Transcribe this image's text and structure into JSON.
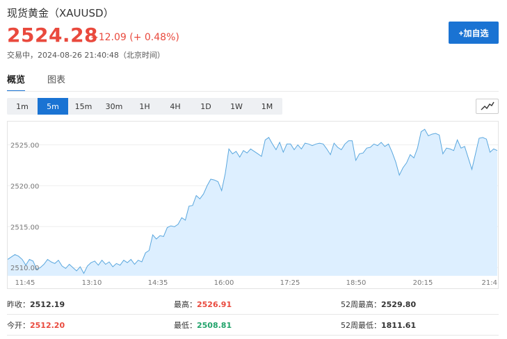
{
  "header": {
    "title": "现货黄金（XAUUSD）",
    "price": "2524.28",
    "change": "+12.09 (+ 0.48%)",
    "status": "交易中，2024-08-26 21:40:48（北京时间）",
    "add_button": "+加自选"
  },
  "tabs": [
    {
      "label": "概览",
      "active": true
    },
    {
      "label": "图表",
      "active": false
    }
  ],
  "intervals": [
    {
      "label": "1m",
      "active": false
    },
    {
      "label": "5m",
      "active": true
    },
    {
      "label": "15m",
      "active": false
    },
    {
      "label": "30m",
      "active": false
    },
    {
      "label": "1H",
      "active": false
    },
    {
      "label": "4H",
      "active": false
    },
    {
      "label": "1D",
      "active": false
    },
    {
      "label": "1W",
      "active": false
    },
    {
      "label": "1M",
      "active": false
    }
  ],
  "chart_type_icon": "line-chart-icon",
  "colors": {
    "up": "#e9493d",
    "down": "#21a36b",
    "accent": "#1a73d3",
    "line": "#5aa7de",
    "fill": "#ddefff"
  },
  "chart_data": {
    "type": "area",
    "title": "",
    "xlabel": "",
    "ylabel": "",
    "ylim": [
      2509.0,
      2527.5
    ],
    "yticks": [
      "2525.00",
      "2520.00",
      "2515.00",
      "2510.00"
    ],
    "ytick_values": [
      2525,
      2520,
      2515,
      2510
    ],
    "xticks": [
      "11:45",
      "13:10",
      "14:35",
      "16:00",
      "17:25",
      "18:50",
      "20:15",
      "21:4"
    ],
    "grid": true,
    "series": [
      {
        "values": [
          2511.0,
          2511.3,
          2511.6,
          2511.4,
          2511.0,
          2510.3,
          2511.0,
          2510.8,
          2509.8,
          2510.0,
          2510.4,
          2511.0,
          2510.7,
          2510.5,
          2510.9,
          2510.2,
          2509.9,
          2510.4,
          2510.0,
          2509.6,
          2510.1,
          2509.3,
          2510.2,
          2510.6,
          2510.8,
          2510.3,
          2510.9,
          2510.4,
          2510.7,
          2510.1,
          2510.5,
          2510.3,
          2510.9,
          2510.6,
          2511.0,
          2510.4,
          2510.9,
          2510.7,
          2511.8,
          2512.1,
          2514.0,
          2513.5,
          2513.9,
          2513.8,
          2514.9,
          2515.1,
          2515.0,
          2515.3,
          2516.1,
          2515.8,
          2517.5,
          2517.6,
          2518.8,
          2518.4,
          2519.0,
          2520.0,
          2520.8,
          2520.7,
          2520.5,
          2519.4,
          2521.5,
          2524.5,
          2523.9,
          2524.2,
          2523.5,
          2524.3,
          2524.0,
          2524.5,
          2524.2,
          2523.9,
          2523.6,
          2525.6,
          2525.9,
          2525.1,
          2524.4,
          2525.3,
          2524.1,
          2525.1,
          2525.1,
          2524.4,
          2525.0,
          2524.5,
          2525.2,
          2525.1,
          2524.9,
          2525.1,
          2525.2,
          2525.1,
          2524.5,
          2523.8,
          2525.2,
          2524.7,
          2524.4,
          2525.1,
          2525.5,
          2525.5,
          2523.1,
          2523.9,
          2524.0,
          2524.6,
          2524.7,
          2525.1,
          2524.9,
          2525.3,
          2524.8,
          2525.1,
          2524.1,
          2522.9,
          2521.3,
          2522.2,
          2522.8,
          2523.8,
          2523.4,
          2524.6,
          2526.6,
          2526.9,
          2526.1,
          2526.3,
          2526.4,
          2526.2,
          2523.9,
          2524.6,
          2524.5,
          2524.3,
          2525.6,
          2524.6,
          2524.8,
          2523.4,
          2522.0,
          2523.9,
          2525.8,
          2525.9,
          2525.7,
          2524.1,
          2524.5,
          2524.3
        ]
      }
    ]
  },
  "stats": [
    [
      {
        "label": "昨收：",
        "value": "2512.19",
        "color": "normal"
      },
      {
        "label": "最高：",
        "value": "2526.91",
        "color": "up"
      },
      {
        "label": "52周最高：",
        "value": "2529.80",
        "color": "normal"
      }
    ],
    [
      {
        "label": "今开：",
        "value": "2512.20",
        "color": "up"
      },
      {
        "label": "最低：",
        "value": "2508.81",
        "color": "down"
      },
      {
        "label": "52周最低：",
        "value": "1811.61",
        "color": "normal"
      }
    ]
  ]
}
